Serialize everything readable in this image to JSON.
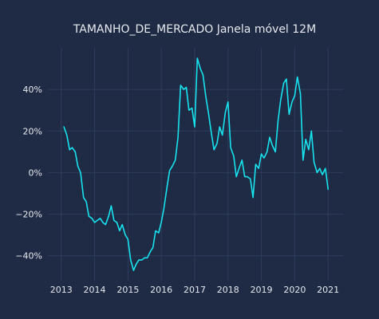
{
  "chart_data": {
    "type": "line",
    "title": "TAMANHO_DE_MERCADO Janela móvel 12M",
    "xlabel": "",
    "ylabel": "",
    "grid": true,
    "xlim": [
      2012.6,
      2021.45
    ],
    "ylim": [
      -0.52,
      0.6
    ],
    "x_ticks": [
      2013,
      2014,
      2015,
      2016,
      2017,
      2018,
      2019,
      2020,
      2021
    ],
    "x_tick_labels": [
      "2013",
      "2014",
      "2015",
      "2016",
      "2017",
      "2018",
      "2019",
      "2020",
      "2021"
    ],
    "y_ticks": [
      -0.4,
      -0.2,
      0.0,
      0.2,
      0.4
    ],
    "y_tick_labels": [
      "−40%",
      "−20%",
      "0%",
      "20%",
      "40%"
    ],
    "colors": {
      "background": "#1f2a44",
      "line": "#17e3ef",
      "grid": "#2f3d5e",
      "text": "#e6e9ef"
    },
    "series": [
      {
        "x": [
          2013.08,
          2013.17,
          2013.25,
          2013.33,
          2013.42,
          2013.5,
          2013.58,
          2013.67,
          2013.75,
          2013.83,
          2013.92,
          2014.0,
          2014.08,
          2014.17,
          2014.25,
          2014.33,
          2014.42,
          2014.5,
          2014.58,
          2014.67,
          2014.75,
          2014.83,
          2014.92,
          2015.0,
          2015.08,
          2015.17,
          2015.25,
          2015.33,
          2015.42,
          2015.5,
          2015.58,
          2015.67,
          2015.75,
          2015.83,
          2015.92,
          2016.0,
          2016.08,
          2016.17,
          2016.25,
          2016.33,
          2016.42,
          2016.5,
          2016.58,
          2016.67,
          2016.75,
          2016.83,
          2016.92,
          2017.0,
          2017.08,
          2017.17,
          2017.25,
          2017.33,
          2017.42,
          2017.5,
          2017.58,
          2017.67,
          2017.75,
          2017.83,
          2017.92,
          2018.0,
          2018.08,
          2018.17,
          2018.25,
          2018.33,
          2018.42,
          2018.5,
          2018.58,
          2018.67,
          2018.75,
          2018.83,
          2018.92,
          2019.0,
          2019.08,
          2019.17,
          2019.25,
          2019.33,
          2019.42,
          2019.5,
          2019.58,
          2019.67,
          2019.75,
          2019.83,
          2019.92,
          2020.0,
          2020.08,
          2020.17,
          2020.25,
          2020.33,
          2020.42,
          2020.5,
          2020.58,
          2020.67,
          2020.75,
          2020.83,
          2020.92,
          2021.0
        ],
        "values": [
          0.22,
          0.18,
          0.11,
          0.12,
          0.1,
          0.03,
          0.0,
          -0.12,
          -0.14,
          -0.21,
          -0.22,
          -0.24,
          -0.23,
          -0.22,
          -0.24,
          -0.25,
          -0.21,
          -0.16,
          -0.23,
          -0.24,
          -0.28,
          -0.25,
          -0.3,
          -0.32,
          -0.42,
          -0.47,
          -0.44,
          -0.42,
          -0.42,
          -0.41,
          -0.41,
          -0.38,
          -0.36,
          -0.28,
          -0.29,
          -0.24,
          -0.17,
          -0.07,
          0.01,
          0.03,
          0.06,
          0.17,
          0.42,
          0.4,
          0.41,
          0.3,
          0.31,
          0.22,
          0.55,
          0.5,
          0.47,
          0.37,
          0.28,
          0.19,
          0.11,
          0.14,
          0.22,
          0.18,
          0.29,
          0.34,
          0.12,
          0.08,
          -0.02,
          0.02,
          0.06,
          -0.02,
          -0.02,
          -0.03,
          -0.12,
          0.04,
          0.02,
          0.09,
          0.07,
          0.1,
          0.17,
          0.13,
          0.1,
          0.25,
          0.35,
          0.43,
          0.45,
          0.28,
          0.34,
          0.37,
          0.46,
          0.38,
          0.06,
          0.16,
          0.11,
          0.2,
          0.05,
          0.0,
          0.02,
          -0.01,
          0.02,
          -0.08
        ]
      }
    ]
  }
}
